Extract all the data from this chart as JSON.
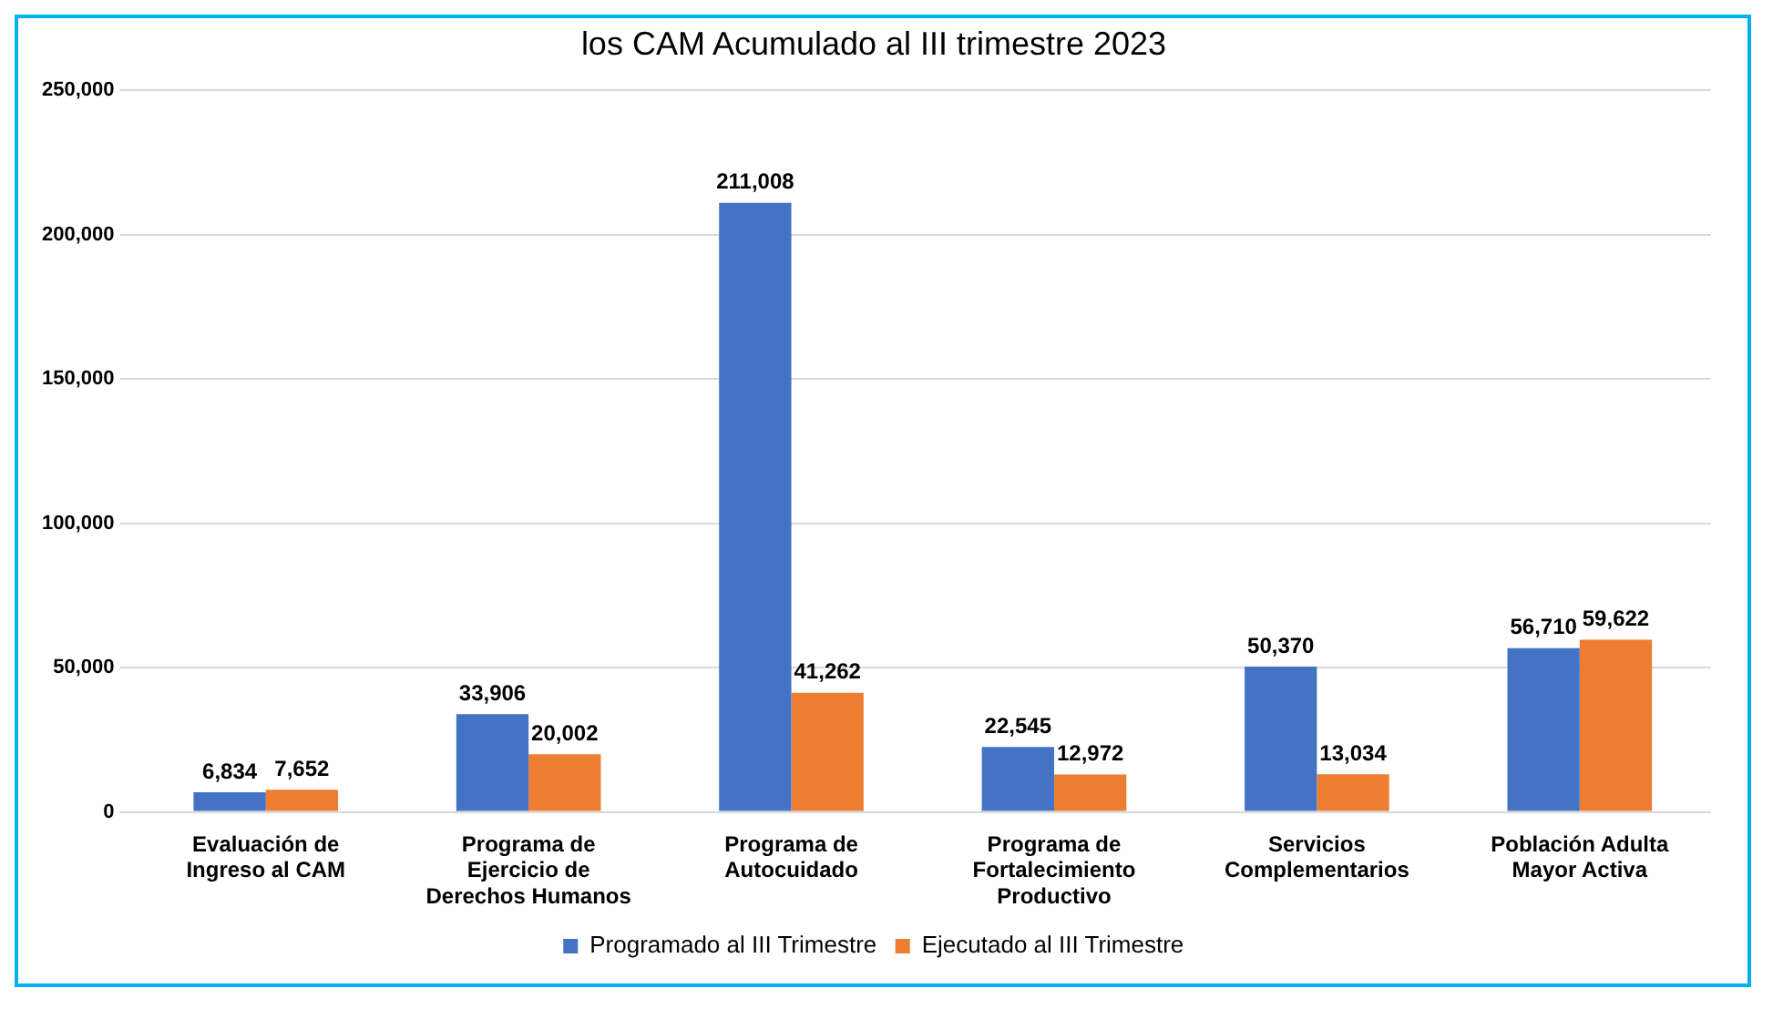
{
  "chart_data": {
    "type": "bar",
    "title": "los CAM Acumulado al III trimestre 2023",
    "categories": [
      "Evaluación de Ingreso al CAM",
      "Programa de Ejercicio de Derechos Humanos",
      "Programa de Autocuidado",
      "Programa de Fortalecimiento Productivo",
      "Servicios Complementarios",
      "Población Adulta Mayor Activa"
    ],
    "series": [
      {
        "name": "Programado al III Trimestre",
        "color": "#4472c4",
        "values": [
          6834,
          33906,
          211008,
          22545,
          50370,
          56710
        ],
        "value_labels": [
          "6,834",
          "33,906",
          "211,008",
          "22,545",
          "50,370",
          "56,710"
        ]
      },
      {
        "name": "Ejecutado al III Trimestre",
        "color": "#ed7d31",
        "values": [
          7652,
          20002,
          41262,
          12972,
          13034,
          59622
        ],
        "value_labels": [
          "7,652",
          "20,002",
          "41,262",
          "12,972",
          "13,034",
          "59,622"
        ]
      }
    ],
    "ylim": [
      0,
      250000
    ],
    "yticks": [
      0,
      {
        "value": 50000,
        "label": "50,000"
      },
      {
        "value": 100000,
        "label": "100,000"
      },
      {
        "value": 150000,
        "label": "150,000"
      },
      {
        "value": 200000,
        "label": "200,000"
      },
      {
        "value": 250000,
        "label": "250,000"
      }
    ],
    "grid": "y",
    "legend": "bottom"
  }
}
